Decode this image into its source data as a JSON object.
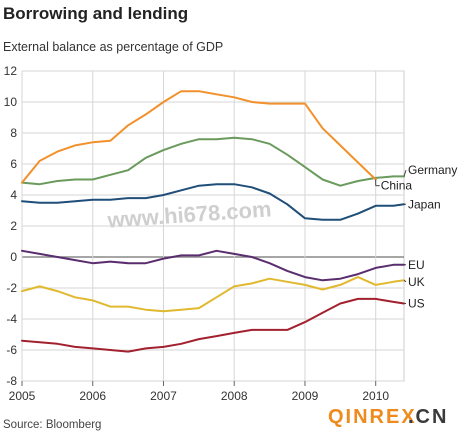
{
  "title": "Borrowing and lending",
  "subtitle": "External balance as percentage of GDP",
  "source": "Source: Bloomberg",
  "watermark": {
    "center": "www.hi678.com",
    "corner_a": "QINREX",
    "corner_b": ".CN"
  },
  "chart_data": {
    "type": "line",
    "title": "Borrowing and lending",
    "ylabel": "External balance as percentage of GDP",
    "xlabel": "",
    "xlim": [
      2005,
      2010.4
    ],
    "ylim": [
      -8,
      12
    ],
    "x_ticks": [
      "2005",
      "2006",
      "2007",
      "2008",
      "2009",
      "2010"
    ],
    "y_ticks": [
      -8,
      -6,
      -4,
      -2,
      0,
      2,
      4,
      6,
      8,
      10,
      12
    ],
    "grid": true,
    "legend": "line-end labels on right",
    "series": [
      {
        "name": "Germany",
        "color": "#6a9a5c",
        "x": [
          2005,
          2005.25,
          2005.5,
          2005.75,
          2006,
          2006.25,
          2006.5,
          2006.75,
          2007,
          2007.25,
          2007.5,
          2007.75,
          2008,
          2008.25,
          2008.5,
          2008.75,
          2009,
          2009.25,
          2009.5,
          2009.75,
          2010,
          2010.25,
          2010.4
        ],
        "y": [
          4.8,
          4.7,
          4.9,
          5.0,
          5.0,
          5.3,
          5.6,
          6.4,
          6.9,
          7.3,
          7.6,
          7.6,
          7.7,
          7.6,
          7.3,
          6.6,
          5.8,
          5.0,
          4.6,
          4.9,
          5.1,
          5.2,
          5.2
        ]
      },
      {
        "name": "China",
        "color": "#f2912b",
        "x": [
          2005,
          2005.25,
          2005.5,
          2005.75,
          2006,
          2006.25,
          2006.5,
          2006.75,
          2007,
          2007.25,
          2007.5,
          2007.75,
          2008,
          2008.25,
          2008.5,
          2008.75,
          2009,
          2009.25,
          2009.5,
          2009.75,
          2010
        ],
        "y": [
          4.8,
          6.2,
          6.8,
          7.2,
          7.4,
          7.5,
          8.5,
          9.2,
          10.0,
          10.7,
          10.7,
          10.5,
          10.3,
          10.0,
          9.9,
          9.9,
          9.9,
          8.3,
          7.2,
          6.1,
          5.0
        ]
      },
      {
        "name": "Japan",
        "color": "#1f4e79",
        "x": [
          2005,
          2005.25,
          2005.5,
          2005.75,
          2006,
          2006.25,
          2006.5,
          2006.75,
          2007,
          2007.25,
          2007.5,
          2007.75,
          2008,
          2008.25,
          2008.5,
          2008.75,
          2009,
          2009.25,
          2009.5,
          2009.75,
          2010,
          2010.25,
          2010.4
        ],
        "y": [
          3.6,
          3.5,
          3.5,
          3.6,
          3.7,
          3.7,
          3.8,
          3.8,
          4.0,
          4.3,
          4.6,
          4.7,
          4.7,
          4.5,
          4.1,
          3.4,
          2.5,
          2.4,
          2.4,
          2.8,
          3.3,
          3.3,
          3.4
        ]
      },
      {
        "name": "EU",
        "color": "#5a2d6e",
        "x": [
          2005,
          2005.25,
          2005.5,
          2005.75,
          2006,
          2006.25,
          2006.5,
          2006.75,
          2007,
          2007.25,
          2007.5,
          2007.75,
          2008,
          2008.25,
          2008.5,
          2008.75,
          2009,
          2009.25,
          2009.5,
          2009.75,
          2010,
          2010.25,
          2010.4
        ],
        "y": [
          0.4,
          0.2,
          0.0,
          -0.2,
          -0.4,
          -0.3,
          -0.4,
          -0.4,
          -0.1,
          0.1,
          0.1,
          0.4,
          0.2,
          0.0,
          -0.4,
          -0.9,
          -1.3,
          -1.5,
          -1.4,
          -1.1,
          -0.7,
          -0.5,
          -0.5
        ]
      },
      {
        "name": "UK",
        "color": "#e0b92e",
        "x": [
          2005,
          2005.25,
          2005.5,
          2005.75,
          2006,
          2006.25,
          2006.5,
          2006.75,
          2007,
          2007.25,
          2007.5,
          2007.75,
          2008,
          2008.25,
          2008.5,
          2008.75,
          2009,
          2009.25,
          2009.5,
          2009.75,
          2010,
          2010.25,
          2010.4
        ],
        "y": [
          -2.2,
          -1.9,
          -2.2,
          -2.6,
          -2.8,
          -3.2,
          -3.2,
          -3.4,
          -3.5,
          -3.4,
          -3.3,
          -2.6,
          -1.9,
          -1.7,
          -1.4,
          -1.6,
          -1.8,
          -2.1,
          -1.8,
          -1.3,
          -1.8,
          -1.6,
          -1.5
        ]
      },
      {
        "name": "US",
        "color": "#a3202f",
        "x": [
          2005,
          2005.25,
          2005.5,
          2005.75,
          2006,
          2006.25,
          2006.5,
          2006.75,
          2007,
          2007.25,
          2007.5,
          2007.75,
          2008,
          2008.25,
          2008.5,
          2008.75,
          2009,
          2009.25,
          2009.5,
          2009.75,
          2010,
          2010.25,
          2010.4
        ],
        "y": [
          -5.4,
          -5.5,
          -5.6,
          -5.8,
          -5.9,
          -6.0,
          -6.1,
          -5.9,
          -5.8,
          -5.6,
          -5.3,
          -5.1,
          -4.9,
          -4.7,
          -4.7,
          -4.7,
          -4.2,
          -3.6,
          -3.0,
          -2.7,
          -2.7,
          -2.9,
          -3.0
        ]
      }
    ]
  }
}
